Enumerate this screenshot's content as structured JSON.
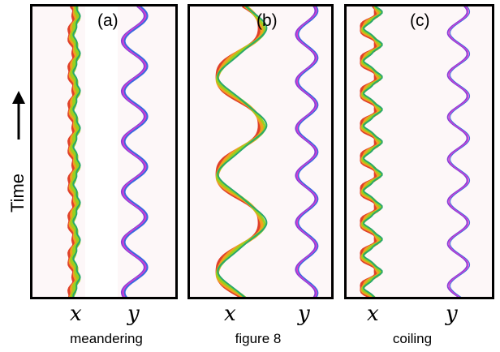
{
  "y_axis_label": "Time",
  "panels": [
    {
      "tag": "(a)",
      "x_label": "x",
      "y_label": "y",
      "caption": "meandering"
    },
    {
      "tag": "(b)",
      "x_label": "x",
      "y_label": "y",
      "caption": "figure 8"
    },
    {
      "tag": "(c)",
      "x_label": "x",
      "y_label": "y",
      "caption": "coiling"
    }
  ],
  "colors": {
    "frame": "#000000",
    "background": "#fdf7f8",
    "x_trace": [
      "#e0402a",
      "#f0a020",
      "#9ad01e",
      "#2aa86a"
    ],
    "y_trace": [
      "#8040d8",
      "#d040d0",
      "#3a6ae0"
    ]
  }
}
